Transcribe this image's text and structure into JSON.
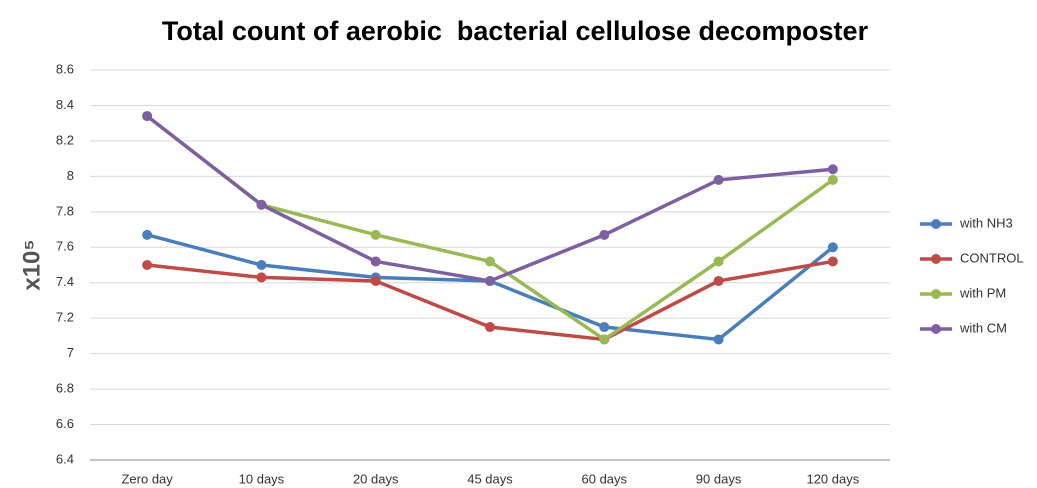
{
  "chart_data": {
    "type": "line",
    "title": "Total count of aerobic  bacterial cellulose decomposter",
    "y_label": "x10⁵",
    "categories": [
      "Zero day",
      "10 days",
      "20 days",
      "45 days",
      "60 days",
      "90 days",
      "120 days"
    ],
    "series": [
      {
        "name": "with NH3",
        "color": "#4a7ebb",
        "values": [
          7.67,
          7.5,
          7.43,
          7.41,
          7.15,
          7.08,
          7.6
        ]
      },
      {
        "name": "CONTROL",
        "color": "#be4b48",
        "values": [
          7.5,
          7.43,
          7.41,
          7.15,
          7.08,
          7.41,
          7.52
        ]
      },
      {
        "name": "with PM",
        "color": "#98b954",
        "values": [
          8.34,
          7.84,
          7.67,
          7.52,
          7.08,
          7.52,
          7.98
        ]
      },
      {
        "name": "with CM",
        "color": "#7d60a0",
        "values": [
          8.34,
          7.84,
          7.52,
          7.41,
          7.67,
          7.98,
          8.04
        ]
      }
    ],
    "ylim": [
      6.4,
      8.6
    ],
    "yticks": [
      {
        "value": 6.4,
        "label": "6.4"
      },
      {
        "value": 6.6,
        "label": "6.6"
      },
      {
        "value": 6.8,
        "label": "6.8"
      },
      7,
      {
        "value": 7.2,
        "label": "7.2"
      },
      {
        "value": 7.4,
        "label": "7.4"
      },
      {
        "value": 7.6,
        "label": "7.6"
      },
      {
        "value": 7.8,
        "label": "7.8"
      },
      8,
      {
        "value": 8.2,
        "label": "8.2"
      },
      {
        "value": 8.4,
        "label": "8.4"
      },
      {
        "value": 8.6,
        "label": "8.6"
      }
    ],
    "grid": true,
    "legend": "right"
  }
}
